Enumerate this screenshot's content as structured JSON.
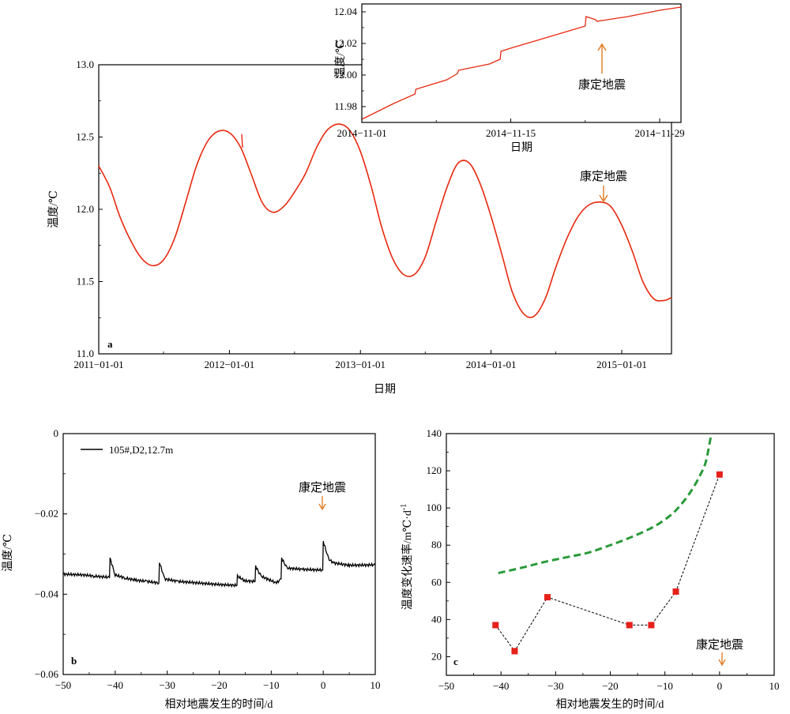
{
  "colors": {
    "series_red": "#e8280f",
    "series_black": "#000000",
    "fit_green": "#2a9a3a",
    "marker_red": "#e6201a",
    "arrow_orange": "#e07a1e"
  },
  "chart_data": [
    {
      "id": "a",
      "type": "line",
      "panel_label": "a",
      "xlabel": "日期",
      "ylabel": "温度/℃",
      "xlim": [
        "2011-01-01",
        "2015-05-20"
      ],
      "ylim": [
        11.0,
        13.0
      ],
      "x_ticks": [
        "2011-01-01",
        "2012-01-01",
        "2013-01-01",
        "2014-01-01",
        "2015-01-01"
      ],
      "y_ticks": [
        "11.0",
        "11.5",
        "12.0",
        "12.5",
        "13.0"
      ],
      "annotation": {
        "text": "康定地震",
        "x": "2014-11-22",
        "y": 12.05
      },
      "series": [
        {
          "color": "series_red",
          "points": [
            [
              "2011-01-01",
              12.3
            ],
            [
              "2011-02-01",
              12.15
            ],
            [
              "2011-03-01",
              11.95
            ],
            [
              "2011-04-01",
              11.78
            ],
            [
              "2011-05-01",
              11.66
            ],
            [
              "2011-06-01",
              11.61
            ],
            [
              "2011-07-01",
              11.65
            ],
            [
              "2011-08-01",
              11.8
            ],
            [
              "2011-09-01",
              12.05
            ],
            [
              "2011-10-01",
              12.3
            ],
            [
              "2011-11-01",
              12.47
            ],
            [
              "2011-12-01",
              12.54
            ],
            [
              "2012-01-01",
              12.53
            ],
            [
              "2012-02-01",
              12.43
            ],
            [
              "2012-03-01",
              12.25
            ],
            [
              "2012-04-01",
              12.05
            ],
            [
              "2012-05-01",
              11.98
            ],
            [
              "2012-06-01",
              12.02
            ],
            [
              "2012-07-01",
              12.12
            ],
            [
              "2012-08-01",
              12.25
            ],
            [
              "2012-09-01",
              12.43
            ],
            [
              "2012-10-01",
              12.55
            ],
            [
              "2012-11-01",
              12.59
            ],
            [
              "2012-12-01",
              12.55
            ],
            [
              "2013-01-01",
              12.4
            ],
            [
              "2013-02-01",
              12.15
            ],
            [
              "2013-03-01",
              11.88
            ],
            [
              "2013-04-01",
              11.66
            ],
            [
              "2013-05-01",
              11.55
            ],
            [
              "2013-06-01",
              11.55
            ],
            [
              "2013-07-01",
              11.67
            ],
            [
              "2013-08-01",
              11.92
            ],
            [
              "2013-09-01",
              12.16
            ],
            [
              "2013-10-01",
              12.32
            ],
            [
              "2013-11-01",
              12.32
            ],
            [
              "2013-12-01",
              12.18
            ],
            [
              "2014-01-01",
              11.95
            ],
            [
              "2014-02-01",
              11.68
            ],
            [
              "2014-03-01",
              11.43
            ],
            [
              "2014-04-01",
              11.28
            ],
            [
              "2014-05-01",
              11.26
            ],
            [
              "2014-06-01",
              11.38
            ],
            [
              "2014-07-01",
              11.6
            ],
            [
              "2014-08-01",
              11.8
            ],
            [
              "2014-09-01",
              11.95
            ],
            [
              "2014-10-01",
              12.03
            ],
            [
              "2014-11-01",
              12.05
            ],
            [
              "2014-12-01",
              12.02
            ],
            [
              "2015-01-01",
              11.89
            ],
            [
              "2015-02-01",
              11.7
            ],
            [
              "2015-03-01",
              11.5
            ],
            [
              "2015-04-01",
              11.38
            ],
            [
              "2015-05-01",
              11.37
            ],
            [
              "2015-05-20",
              11.39
            ]
          ]
        }
      ]
    },
    {
      "id": "a-inset",
      "type": "line",
      "xlabel": "日期",
      "ylabel": "温度/℃",
      "xlim": [
        "2014-11-01",
        "2014-12-01"
      ],
      "ylim": [
        11.97,
        12.045
      ],
      "x_ticks": [
        "2014-11-01",
        "2014-11-15",
        "2014-11-29"
      ],
      "y_ticks": [
        "11.98",
        "12.00",
        "12.02",
        "12.04"
      ],
      "annotation": {
        "text": "康定地震",
        "x": "2014-11-22",
        "y": 12.03
      },
      "series": [
        {
          "color": "series_red",
          "points": [
            [
              "2014-11-01",
              11.972
            ],
            [
              "2014-11-04",
              11.982
            ],
            [
              "2014-11-06",
              11.988
            ],
            [
              "2014-11-06",
              11.991
            ],
            [
              "2014-11-09",
              11.997
            ],
            [
              "2014-11-10",
              12.001
            ],
            [
              "2014-11-10",
              12.003
            ],
            [
              "2014-11-13",
              12.007
            ],
            [
              "2014-11-14",
              12.01
            ],
            [
              "2014-11-14",
              12.015
            ],
            [
              "2014-11-15",
              12.017
            ],
            [
              "2014-11-19",
              12.025
            ],
            [
              "2014-11-22",
              12.031
            ],
            [
              "2014-11-22",
              12.037
            ],
            [
              "2014-11-23",
              12.035
            ],
            [
              "2014-11-23",
              12.034
            ],
            [
              "2014-11-26",
              12.037
            ],
            [
              "2014-11-29",
              12.041
            ],
            [
              "2014-12-01",
              12.043
            ]
          ]
        }
      ]
    },
    {
      "id": "b",
      "type": "line",
      "panel_label": "b",
      "xlabel": "相对地震发生的时间/d",
      "ylabel": "温度/℃",
      "xlim": [
        -50,
        10
      ],
      "ylim": [
        -0.06,
        0
      ],
      "x_ticks": [
        "-50",
        "-40",
        "-30",
        "-20",
        "-10",
        "0",
        "10"
      ],
      "y_ticks": [
        "-0.06",
        "-0.04",
        "-0.02",
        "0"
      ],
      "legend": {
        "position": "top-left",
        "entries": [
          "105#,D2,12.7m"
        ]
      },
      "annotation": {
        "text": "康定地震",
        "x": 0,
        "y": -0.034
      },
      "series": [
        {
          "name": "105#,D2,12.7m",
          "color": "series_black",
          "points": [
            [
              -50,
              -0.035
            ],
            [
              -46,
              -0.0352
            ],
            [
              -44,
              -0.0355
            ],
            [
              -41.1,
              -0.0358
            ],
            [
              -41,
              -0.031
            ],
            [
              -40,
              -0.0352
            ],
            [
              -38,
              -0.036
            ],
            [
              -36,
              -0.0365
            ],
            [
              -34,
              -0.0368
            ],
            [
              -31.6,
              -0.0372
            ],
            [
              -31.5,
              -0.032
            ],
            [
              -30.5,
              -0.0362
            ],
            [
              -28,
              -0.0368
            ],
            [
              -24,
              -0.0372
            ],
            [
              -20,
              -0.0376
            ],
            [
              -16.6,
              -0.0378
            ],
            [
              -16.5,
              -0.0355
            ],
            [
              -15,
              -0.0367
            ],
            [
              -13.1,
              -0.0368
            ],
            [
              -13,
              -0.033
            ],
            [
              -12,
              -0.0355
            ],
            [
              -9,
              -0.0372
            ],
            [
              -8.1,
              -0.0362
            ],
            [
              -8,
              -0.031
            ],
            [
              -7,
              -0.0335
            ],
            [
              -4,
              -0.0338
            ],
            [
              -0.1,
              -0.034
            ],
            [
              0,
              -0.0268
            ],
            [
              1,
              -0.0312
            ],
            [
              2,
              -0.0322
            ],
            [
              5,
              -0.0328
            ],
            [
              10,
              -0.0327
            ]
          ]
        }
      ]
    },
    {
      "id": "c",
      "type": "scatter",
      "panel_label": "c",
      "xlabel": "相对地震发生的时间/d",
      "ylabel": "温度变化速率/m℃·d",
      "ylabel_sup": "-1",
      "xlim": [
        -50,
        10
      ],
      "ylim": [
        10,
        140
      ],
      "x_ticks": [
        "-50",
        "-40",
        "-30",
        "-20",
        "-10",
        "0",
        "10"
      ],
      "y_ticks": [
        "20",
        "40",
        "60",
        "80",
        "100",
        "120",
        "140"
      ],
      "annotation": {
        "text": "康定地震",
        "x": 0,
        "y": 15
      },
      "series": [
        {
          "color": "marker_red",
          "x": [
            -41,
            -37.5,
            -31.5,
            -16.5,
            -12.5,
            -8,
            0
          ],
          "y": [
            37,
            23,
            52,
            37,
            37,
            55,
            118
          ]
        }
      ],
      "trend": {
        "color": "fit_green",
        "x": [
          -40.5,
          -36,
          -32,
          -28,
          -24,
          -20,
          -16,
          -12,
          -9,
          -7,
          -5,
          -3.5,
          -2.5,
          -1.5
        ],
        "y": [
          65,
          68,
          71,
          73.5,
          76,
          80,
          84.5,
          90,
          96,
          102,
          110,
          118,
          125,
          140
        ]
      }
    }
  ]
}
